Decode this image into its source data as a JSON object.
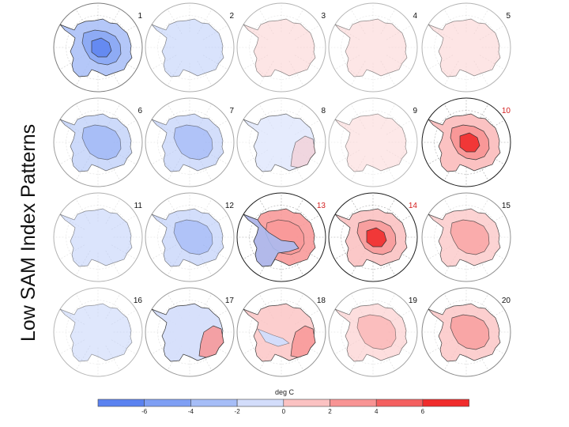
{
  "figure": {
    "side_title": "Low SAM Index Patterns",
    "colorbar_unit": "deg C",
    "colorbar_ticks": [
      "-6",
      "-4",
      "-2",
      "0",
      "2",
      "4",
      "6"
    ],
    "colors": {
      "blue": [
        "#5b82f0",
        "#7f9ff4",
        "#a6bdf7",
        "#d3ddfb"
      ],
      "red": [
        "#fbc2c2",
        "#f89494",
        "#f46060",
        "#f02c2c"
      ],
      "highlight_number": "#d42020",
      "normal_number": "#111111"
    }
  },
  "panels": [
    {
      "label": "1",
      "mode": "blue",
      "intensity": 0.85,
      "highlight": false
    },
    {
      "label": "2",
      "mode": "blue",
      "intensity": 0.25,
      "highlight": false
    },
    {
      "label": "3",
      "mode": "red",
      "intensity": 0.18,
      "highlight": false
    },
    {
      "label": "4",
      "mode": "red",
      "intensity": 0.15,
      "highlight": false
    },
    {
      "label": "5",
      "mode": "red",
      "intensity": 0.18,
      "highlight": false
    },
    {
      "label": "6",
      "mode": "blue",
      "intensity": 0.45,
      "highlight": false
    },
    {
      "label": "7",
      "mode": "blue",
      "intensity": 0.35,
      "highlight": false
    },
    {
      "label": "8",
      "mode": "mixed",
      "intensity": 0.25,
      "highlight": false
    },
    {
      "label": "9",
      "mode": "red",
      "intensity": 0.12,
      "highlight": false
    },
    {
      "label": "10",
      "mode": "red",
      "intensity": 1.0,
      "highlight": true
    },
    {
      "label": "11",
      "mode": "blue",
      "intensity": 0.22,
      "highlight": false
    },
    {
      "label": "12",
      "mode": "blue",
      "intensity": 0.35,
      "highlight": false
    },
    {
      "label": "13",
      "mode": "split",
      "intensity": 0.75,
      "highlight": true
    },
    {
      "label": "14",
      "mode": "red",
      "intensity": 0.85,
      "highlight": true
    },
    {
      "label": "15",
      "mode": "red",
      "intensity": 0.6,
      "highlight": false
    },
    {
      "label": "16",
      "mode": "blue",
      "intensity": 0.15,
      "highlight": false
    },
    {
      "label": "17",
      "mode": "split2",
      "intensity": 0.5,
      "highlight": false
    },
    {
      "label": "18",
      "mode": "mixed2",
      "intensity": 0.55,
      "highlight": false
    },
    {
      "label": "19",
      "mode": "red",
      "intensity": 0.35,
      "highlight": false
    },
    {
      "label": "20",
      "mode": "red",
      "intensity": 0.7,
      "highlight": false
    }
  ]
}
